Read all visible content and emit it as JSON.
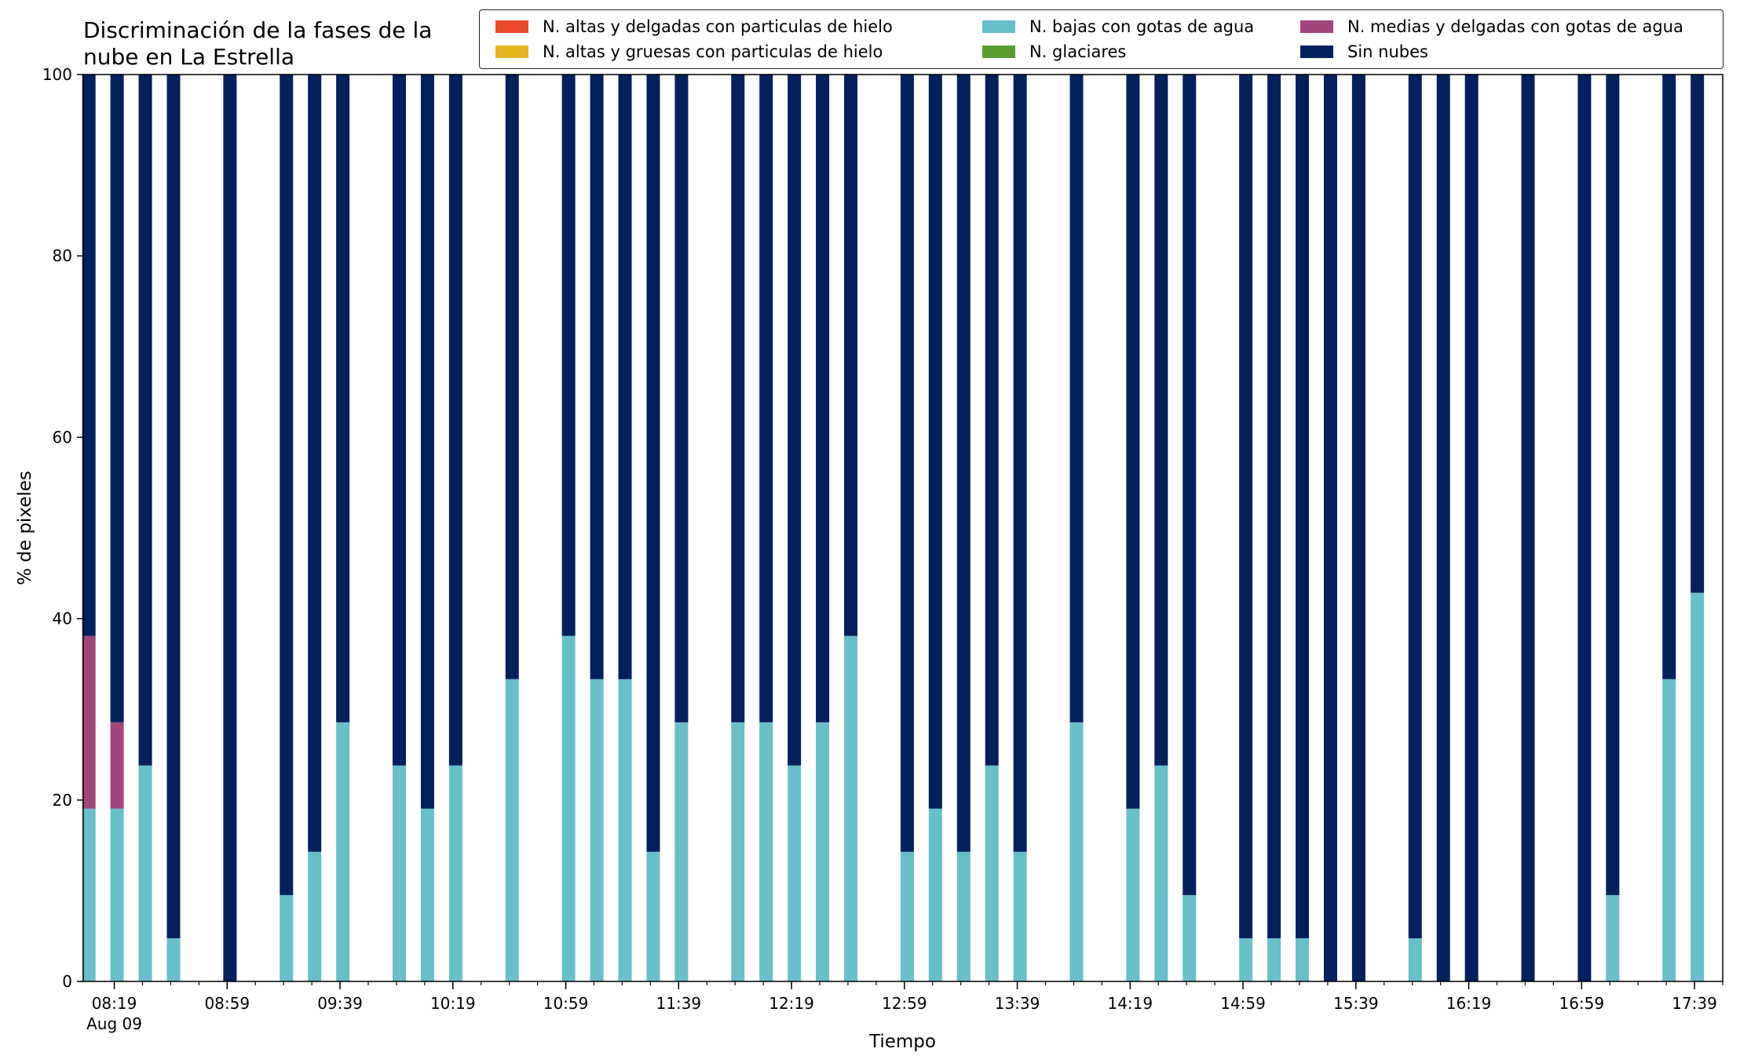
{
  "chart_data": {
    "type": "bar",
    "stacked": true,
    "title": "Discriminación de la fases de la\nnube en La Estrella",
    "xlabel": "Tiempo",
    "ylabel": "% de pixeles",
    "ylim": [
      0,
      100
    ],
    "yticks": [
      0,
      20,
      40,
      60,
      80,
      100
    ],
    "x_range_minutes": [
      488,
      1069
    ],
    "xtick_major": [
      {
        "t": 499,
        "label": "08:19",
        "sublabel": "Aug 09"
      },
      {
        "t": 539,
        "label": "08:59"
      },
      {
        "t": 579,
        "label": "09:39"
      },
      {
        "t": 619,
        "label": "10:19"
      },
      {
        "t": 659,
        "label": "10:59"
      },
      {
        "t": 699,
        "label": "11:39"
      },
      {
        "t": 739,
        "label": "12:19"
      },
      {
        "t": 779,
        "label": "12:59"
      },
      {
        "t": 819,
        "label": "13:39"
      },
      {
        "t": 859,
        "label": "14:19"
      },
      {
        "t": 899,
        "label": "14:59"
      },
      {
        "t": 939,
        "label": "15:39"
      },
      {
        "t": 979,
        "label": "16:19"
      },
      {
        "t": 1019,
        "label": "16:59"
      },
      {
        "t": 1059,
        "label": "17:39"
      }
    ],
    "grid": false,
    "legend_position": "top-right",
    "series": [
      {
        "name": "N. altas y delgadas con particulas de hielo",
        "color": "#e84a2b"
      },
      {
        "name": "N. altas y gruesas con particulas de hielo",
        "color": "#e6b41e"
      },
      {
        "name": "N. bajas con gotas de agua",
        "color": "#67bfcb"
      },
      {
        "name": "N. glaciares",
        "color": "#5a9e2f"
      },
      {
        "name": "N. medias y delgadas con gotas de agua",
        "color": "#a2457b"
      },
      {
        "name": "Sin nubes",
        "color": "#03205e"
      }
    ],
    "bars": [
      {
        "t": 490,
        "bajas": 19.05,
        "medias": 19.05
      },
      {
        "t": 500,
        "bajas": 19.05,
        "medias": 9.52
      },
      {
        "t": 510,
        "bajas": 23.81,
        "medias": 0
      },
      {
        "t": 520,
        "bajas": 4.76,
        "medias": 0
      },
      {
        "t": 540,
        "bajas": 0,
        "medias": 0
      },
      {
        "t": 560,
        "bajas": 9.52,
        "medias": 0
      },
      {
        "t": 570,
        "bajas": 14.29,
        "medias": 0
      },
      {
        "t": 580,
        "bajas": 28.57,
        "medias": 0
      },
      {
        "t": 600,
        "bajas": 23.81,
        "medias": 0
      },
      {
        "t": 610,
        "bajas": 19.05,
        "medias": 0
      },
      {
        "t": 620,
        "bajas": 23.81,
        "medias": 0
      },
      {
        "t": 640,
        "bajas": 33.33,
        "medias": 0
      },
      {
        "t": 660,
        "bajas": 38.1,
        "medias": 0
      },
      {
        "t": 670,
        "bajas": 33.33,
        "medias": 0
      },
      {
        "t": 680,
        "bajas": 33.33,
        "medias": 0
      },
      {
        "t": 690,
        "bajas": 14.29,
        "medias": 0
      },
      {
        "t": 700,
        "bajas": 28.57,
        "medias": 0
      },
      {
        "t": 720,
        "bajas": 28.57,
        "medias": 0
      },
      {
        "t": 730,
        "bajas": 28.57,
        "medias": 0
      },
      {
        "t": 740,
        "bajas": 23.81,
        "medias": 0
      },
      {
        "t": 750,
        "bajas": 28.57,
        "medias": 0
      },
      {
        "t": 760,
        "bajas": 38.1,
        "medias": 0
      },
      {
        "t": 780,
        "bajas": 14.29,
        "medias": 0
      },
      {
        "t": 790,
        "bajas": 19.05,
        "medias": 0
      },
      {
        "t": 800,
        "bajas": 14.29,
        "medias": 0
      },
      {
        "t": 810,
        "bajas": 23.81,
        "medias": 0
      },
      {
        "t": 820,
        "bajas": 14.29,
        "medias": 0
      },
      {
        "t": 840,
        "bajas": 28.57,
        "medias": 0
      },
      {
        "t": 860,
        "bajas": 19.05,
        "medias": 0
      },
      {
        "t": 870,
        "bajas": 23.81,
        "medias": 0
      },
      {
        "t": 880,
        "bajas": 9.52,
        "medias": 0
      },
      {
        "t": 900,
        "bajas": 4.76,
        "medias": 0
      },
      {
        "t": 910,
        "bajas": 4.76,
        "medias": 0
      },
      {
        "t": 920,
        "bajas": 4.76,
        "medias": 0
      },
      {
        "t": 930,
        "bajas": 0,
        "medias": 0
      },
      {
        "t": 940,
        "bajas": 0,
        "medias": 0
      },
      {
        "t": 960,
        "bajas": 4.76,
        "medias": 0
      },
      {
        "t": 970,
        "bajas": 0,
        "medias": 0
      },
      {
        "t": 980,
        "bajas": 0,
        "medias": 0
      },
      {
        "t": 1000,
        "bajas": 0,
        "medias": 0
      },
      {
        "t": 1020,
        "bajas": 0,
        "medias": 0
      },
      {
        "t": 1030,
        "bajas": 9.52,
        "medias": 0
      },
      {
        "t": 1050,
        "bajas": 33.33,
        "medias": 0
      },
      {
        "t": 1060,
        "bajas": 42.86,
        "medias": 0
      }
    ]
  }
}
